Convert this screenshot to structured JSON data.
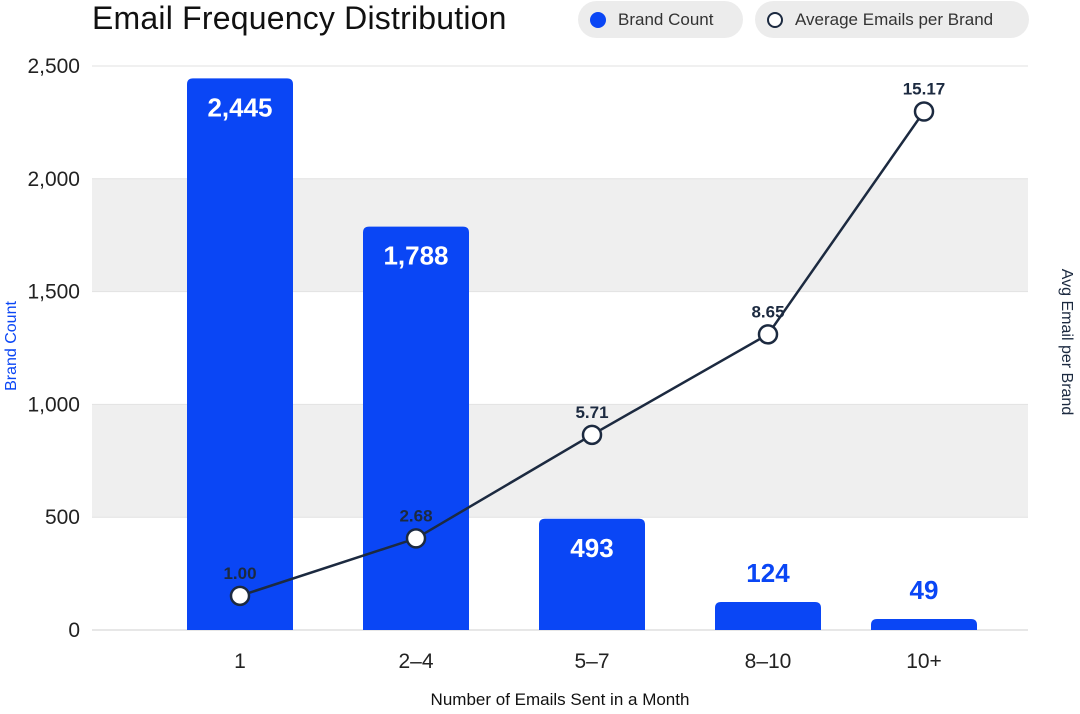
{
  "chart_data": {
    "type": "bar",
    "title": "Email Frequency Distribution",
    "xlabel": "Number of Emails Sent in a Month",
    "ylabel": "Brand Count",
    "ylabel_right": "Avg Email per Brand",
    "categories": [
      "1",
      "2–4",
      "5–7",
      "8–10",
      "10+"
    ],
    "y_ticks": [
      "0",
      "500",
      "1,000",
      "1,500",
      "2,000",
      "2,500"
    ],
    "y_tick_values": [
      0,
      500,
      1000,
      1500,
      2000,
      2500
    ],
    "ylim": [
      0,
      2500
    ],
    "series": [
      {
        "name": "Brand Count",
        "type": "bar",
        "values": [
          2445,
          1788,
          493,
          124,
          49
        ],
        "labels": [
          "2,445",
          "1,788",
          "493",
          "124",
          "49"
        ],
        "color": "#0a46f5"
      },
      {
        "name": "Average Emails per Brand",
        "type": "line",
        "values": [
          1.0,
          2.68,
          5.71,
          8.65,
          15.17
        ],
        "labels": [
          "1.00",
          "2.68",
          "5.71",
          "8.65",
          "15.17"
        ],
        "color": "#1c2a40"
      }
    ],
    "secondary_axis": {
      "ylim": [
        0,
        16.5
      ],
      "ticks_visible": false
    },
    "grid": "alternating horizontal bands",
    "legend_position": "top-right"
  }
}
